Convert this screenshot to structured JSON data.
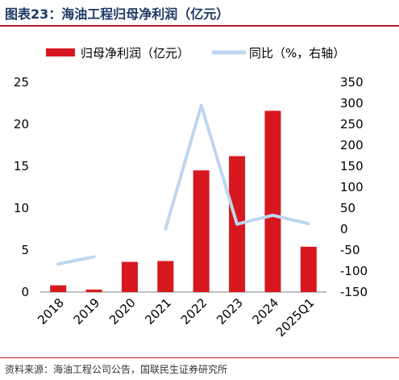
{
  "header": {
    "title": "图表23：海油工程归母净利润（亿元）"
  },
  "footer": {
    "source": "资料来源：海油工程公司公告，国联民生证券研究所"
  },
  "colors": {
    "bar": "#d7181f",
    "line": "#bdd7ee",
    "title": "#1f3864",
    "rule": "#b01f24"
  },
  "chart_data": {
    "type": "bar",
    "title": "",
    "categories": [
      "2018",
      "2019",
      "2020",
      "2021",
      "2022",
      "2023",
      "2024",
      "2025Q1"
    ],
    "series": [
      {
        "name": "归母净利润（亿元）",
        "type": "bar",
        "axis": "left",
        "values": [
          0.8,
          0.3,
          3.6,
          3.7,
          14.5,
          16.2,
          21.6,
          5.4
        ]
      },
      {
        "name": "同比（%，右轴）",
        "type": "line",
        "axis": "right",
        "values": [
          -83,
          -66,
          null,
          0,
          295,
          12,
          33,
          13
        ]
      }
    ],
    "y_left": {
      "min": 0,
      "max": 25,
      "ticks": [
        "0",
        "5",
        "10",
        "15",
        "20",
        "25"
      ]
    },
    "y_right": {
      "min": -150,
      "max": 350,
      "ticks": [
        "-150",
        "-100",
        "-50",
        "0",
        "50",
        "100",
        "150",
        "200",
        "250",
        "300",
        "350"
      ]
    },
    "legend_position": "top",
    "grid": false
  }
}
